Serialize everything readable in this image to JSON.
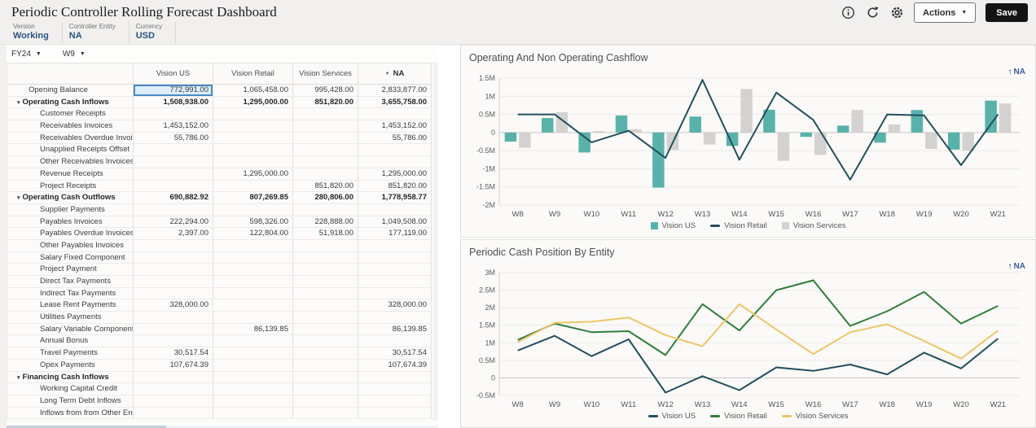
{
  "header": {
    "title": "Periodic Controller Rolling Forecast Dashboard",
    "actions_label": "Actions",
    "save_label": "Save",
    "icons": [
      "info-icon",
      "refresh-icon",
      "gear-icon"
    ]
  },
  "pov": {
    "items": [
      {
        "label": "Version",
        "value": "Working"
      },
      {
        "label": "Controller Entity",
        "value": "NA"
      },
      {
        "label": "Currency",
        "value": "USD"
      }
    ]
  },
  "grid": {
    "selectors": [
      {
        "name": "year-selector",
        "value": "FY24"
      },
      {
        "name": "week-selector",
        "value": "W9"
      }
    ],
    "columns": [
      "Vision US",
      "Vision Retail",
      "Vision Services",
      "NA"
    ],
    "na_header_icon": "hierarchy-collapsed-icon",
    "rows": [
      {
        "label": "Opening Balance",
        "indent": 1,
        "bold": false,
        "caret": false,
        "selected_col": 0,
        "values": [
          "772,991.00",
          "1,065,458.00",
          "995,428.00",
          "2,833,877.00"
        ]
      },
      {
        "label": "Operating Cash Inflows",
        "indent": 0,
        "bold": true,
        "caret": true,
        "values": [
          "1,508,938.00",
          "1,295,000.00",
          "851,820.00",
          "3,655,758.00"
        ]
      },
      {
        "label": "Customer Receipts",
        "indent": 2,
        "bold": false,
        "caret": false,
        "values": [
          "",
          "",
          "",
          ""
        ]
      },
      {
        "label": "Receivables Invoices",
        "indent": 2,
        "bold": false,
        "caret": false,
        "values": [
          "1,453,152.00",
          "",
          "",
          "1,453,152.00"
        ]
      },
      {
        "label": "Receivables Overdue Invoices",
        "indent": 2,
        "bold": false,
        "caret": false,
        "values": [
          "55,786.00",
          "",
          "",
          "55,786.00"
        ]
      },
      {
        "label": "Unapplied Receipts Offset",
        "indent": 2,
        "bold": false,
        "caret": false,
        "values": [
          "",
          "",
          "",
          ""
        ]
      },
      {
        "label": "Other Receivables Invoices",
        "indent": 2,
        "bold": false,
        "caret": false,
        "values": [
          "",
          "",
          "",
          ""
        ]
      },
      {
        "label": "Revenue Receipts",
        "indent": 2,
        "bold": false,
        "caret": false,
        "values": [
          "",
          "1,295,000.00",
          "",
          "1,295,000.00"
        ]
      },
      {
        "label": "Project Receipts",
        "indent": 2,
        "bold": false,
        "caret": false,
        "values": [
          "",
          "",
          "851,820.00",
          "851,820.00"
        ]
      },
      {
        "label": "Operating Cash Outflows",
        "indent": 0,
        "bold": true,
        "caret": true,
        "values": [
          "690,882.92",
          "807,269.85",
          "280,806.00",
          "1,778,958.77"
        ]
      },
      {
        "label": "Supplier Payments",
        "indent": 2,
        "bold": false,
        "caret": false,
        "values": [
          "",
          "",
          "",
          ""
        ]
      },
      {
        "label": "Payables Invoices",
        "indent": 2,
        "bold": false,
        "caret": false,
        "values": [
          "222,294.00",
          "598,326.00",
          "228,888.00",
          "1,049,508.00"
        ]
      },
      {
        "label": "Payables Overdue Invoices",
        "indent": 2,
        "bold": false,
        "caret": false,
        "values": [
          "2,397.00",
          "122,804.00",
          "51,918.00",
          "177,119.00"
        ]
      },
      {
        "label": "Other Payables Invoices",
        "indent": 2,
        "bold": false,
        "caret": false,
        "values": [
          "",
          "",
          "",
          ""
        ]
      },
      {
        "label": "Salary Fixed  Component",
        "indent": 2,
        "bold": false,
        "caret": false,
        "values": [
          "",
          "",
          "",
          ""
        ]
      },
      {
        "label": "Project Payment",
        "indent": 2,
        "bold": false,
        "caret": false,
        "values": [
          "",
          "",
          "",
          ""
        ]
      },
      {
        "label": "Direct Tax Payments",
        "indent": 2,
        "bold": false,
        "caret": false,
        "values": [
          "",
          "",
          "",
          ""
        ]
      },
      {
        "label": "Indirect Tax Payments",
        "indent": 2,
        "bold": false,
        "caret": false,
        "values": [
          "",
          "",
          "",
          ""
        ]
      },
      {
        "label": "Lease Rent Payments",
        "indent": 2,
        "bold": false,
        "caret": false,
        "values": [
          "328,000.00",
          "",
          "",
          "328,000.00"
        ]
      },
      {
        "label": "Utilities Payments",
        "indent": 2,
        "bold": false,
        "caret": false,
        "values": [
          "",
          "",
          "",
          ""
        ]
      },
      {
        "label": "Salary Variable Component",
        "indent": 2,
        "bold": false,
        "caret": false,
        "values": [
          "",
          "86,139.85",
          "",
          "86,139.85"
        ]
      },
      {
        "label": "Annual Bonus",
        "indent": 2,
        "bold": false,
        "caret": false,
        "values": [
          "",
          "",
          "",
          ""
        ]
      },
      {
        "label": "Travel Payments",
        "indent": 2,
        "bold": false,
        "caret": false,
        "values": [
          "30,517.54",
          "",
          "",
          "30,517.54"
        ]
      },
      {
        "label": "Opex Payments",
        "indent": 2,
        "bold": false,
        "caret": false,
        "values": [
          "107,674.39",
          "",
          "",
          "107,674.39"
        ]
      },
      {
        "label": "Financing Cash Inflows",
        "indent": 0,
        "bold": true,
        "caret": true,
        "values": [
          "",
          "",
          "",
          ""
        ]
      },
      {
        "label": "Working Capital Credit",
        "indent": 2,
        "bold": false,
        "caret": false,
        "values": [
          "",
          "",
          "",
          ""
        ]
      },
      {
        "label": "Long Term Debt Inflows",
        "indent": 2,
        "bold": false,
        "caret": false,
        "values": [
          "",
          "",
          "",
          ""
        ]
      },
      {
        "label": "Inflows from from Other Entities",
        "indent": 2,
        "bold": false,
        "caret": false,
        "values": [
          "",
          "",
          "",
          ""
        ]
      }
    ]
  },
  "chart_data": [
    {
      "type": "combo",
      "title": "Operating And Non Operating Cashflow",
      "link": "NA",
      "unit": "M",
      "categories": [
        "W8",
        "W9",
        "W10",
        "W11",
        "W12",
        "W13",
        "W14",
        "W15",
        "W16",
        "W17",
        "W18",
        "W19",
        "W20",
        "W21"
      ],
      "ylim": [
        -2,
        1.5
      ],
      "yticks": [
        1.5,
        1,
        0.5,
        0,
        -0.5,
        -1,
        -1.5,
        -2
      ],
      "ytick_labels": [
        "1.5M",
        "1M",
        "0.5M",
        "0",
        "-0.5M",
        "-1M",
        "-1.5M",
        "-2M"
      ],
      "legend_position": "bottom",
      "series": [
        {
          "name": "Vision US",
          "type": "bar",
          "color": "#59b2aa",
          "values": [
            -0.25,
            0.4,
            -0.55,
            0.47,
            -1.52,
            0.44,
            -0.37,
            0.63,
            -0.12,
            0.19,
            -0.28,
            0.62,
            -0.47,
            0.88
          ]
        },
        {
          "name": "Vision Retail",
          "type": "line",
          "color": "#224f5e",
          "values": [
            0.5,
            0.5,
            -0.27,
            0.05,
            -0.7,
            1.45,
            -0.75,
            1.1,
            0.35,
            -1.3,
            0.5,
            0.47,
            -0.9,
            0.5
          ]
        },
        {
          "name": "Vision Services",
          "type": "bar",
          "color": "#d4d2d0",
          "values": [
            -0.42,
            0.56,
            0.04,
            0.09,
            -0.48,
            -0.33,
            1.2,
            -0.78,
            -0.62,
            0.62,
            0.22,
            -0.45,
            -0.5,
            0.8
          ]
        }
      ]
    },
    {
      "type": "line",
      "title": "Periodic Cash Position By Entity",
      "link": "NA",
      "unit": "M",
      "categories": [
        "W8",
        "W9",
        "W10",
        "W11",
        "W12",
        "W13",
        "W14",
        "W15",
        "W16",
        "W17",
        "W18",
        "W19",
        "W20",
        "W21"
      ],
      "ylim": [
        -0.5,
        3
      ],
      "yticks": [
        3,
        2.5,
        2,
        1.5,
        1,
        0.5,
        0,
        -0.5
      ],
      "ytick_labels": [
        "3M",
        "2.5M",
        "2M",
        "1.5M",
        "1M",
        "0.5M",
        "0",
        "-0.5M"
      ],
      "legend_position": "bottom",
      "series": [
        {
          "name": "Vision US",
          "type": "line",
          "color": "#224f5e",
          "values": [
            0.78,
            1.2,
            0.62,
            1.1,
            -0.42,
            0.05,
            -0.35,
            0.3,
            0.2,
            0.38,
            0.1,
            0.72,
            0.27,
            1.12
          ]
        },
        {
          "name": "Vision Retail",
          "type": "line",
          "color": "#2f7d3b",
          "values": [
            1.08,
            1.55,
            1.3,
            1.33,
            0.65,
            2.1,
            1.35,
            2.5,
            2.78,
            1.48,
            1.9,
            2.45,
            1.55,
            2.05
          ]
        },
        {
          "name": "Vision Services",
          "type": "line",
          "color": "#eec566",
          "values": [
            1.02,
            1.57,
            1.6,
            1.72,
            1.22,
            0.9,
            2.1,
            1.38,
            0.68,
            1.3,
            1.53,
            1.05,
            0.55,
            1.35
          ]
        }
      ]
    }
  ]
}
